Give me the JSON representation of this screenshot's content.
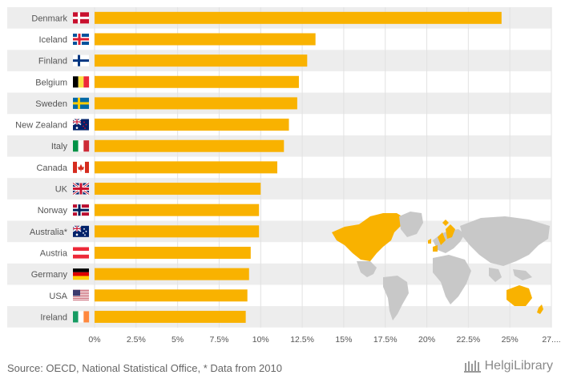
{
  "chart_data": {
    "type": "bar",
    "orientation": "horizontal",
    "categories": [
      "Denmark",
      "Iceland",
      "Finland",
      "Belgium",
      "Sweden",
      "New Zealand",
      "Italy",
      "Canada",
      "UK",
      "Norway",
      "Australia*",
      "Austria",
      "Germany",
      "USA",
      "Ireland"
    ],
    "flags": [
      "denmark",
      "iceland",
      "finland",
      "belgium",
      "sweden",
      "new-zealand",
      "italy",
      "canada",
      "uk",
      "norway",
      "australia",
      "austria",
      "germany",
      "usa",
      "ireland"
    ],
    "values": [
      24.5,
      13.3,
      12.8,
      12.3,
      12.2,
      11.7,
      11.4,
      11.0,
      10.0,
      9.9,
      9.9,
      9.4,
      9.3,
      9.2,
      9.1
    ],
    "x_ticks": [
      "0%",
      "2.5%",
      "5%",
      "7.5%",
      "10%",
      "12.5%",
      "15%",
      "17.5%",
      "20%",
      "22.5%",
      "25%",
      "27...."
    ],
    "xlim": [
      0,
      27.5
    ],
    "bar_color": "#F9B200",
    "band_color": "#EDEDED",
    "grid": true,
    "title": "",
    "xlabel": "",
    "ylabel": ""
  },
  "footer": {
    "source": "Source: OECD, National Statistical Office, * Data from 2010",
    "brand": "HelgiLibrary"
  },
  "map": {
    "icon": "world-map-highlighted",
    "highlight_color": "#F9B200",
    "base_color": "#C8C8C8"
  }
}
